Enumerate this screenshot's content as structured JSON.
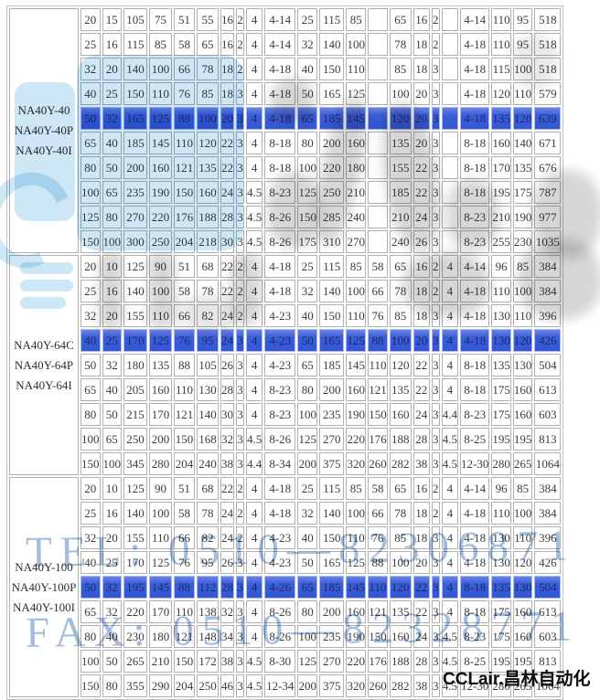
{
  "watermarks": {
    "tel": "TEL: 0510—82306871",
    "fax": "FAX: 0510—82328771",
    "brand": "CCLair.昌林自动化"
  },
  "colors": {
    "highlight_blue": "#3a5ed8",
    "watermark_light_blue": "#cde7f6",
    "watermark_gray": "#767676",
    "cell_border": "#b2b1b0",
    "text": "#3c3c3c",
    "highlight_text": "#1d2a6a"
  },
  "table": {
    "groups": [
      {
        "models": [
          "NA40Y-40",
          "NA40Y-40P",
          "NA40Y-40I"
        ],
        "highlight_row": 4,
        "rows": [
          [
            "20",
            "15",
            "105",
            "75",
            "51",
            "55",
            "16",
            "2",
            "4",
            "4-14",
            "25",
            "115",
            "85",
            "",
            "65",
            "16",
            "2",
            "",
            "4-14",
            "110",
            "95",
            "518"
          ],
          [
            "25",
            "16",
            "115",
            "85",
            "58",
            "65",
            "16",
            "2",
            "4",
            "4-14",
            "32",
            "140",
            "100",
            "",
            "78",
            "18",
            "2",
            "",
            "4-18",
            "110",
            "95",
            "518"
          ],
          [
            "32",
            "20",
            "140",
            "100",
            "66",
            "78",
            "18",
            "2",
            "4",
            "4-18",
            "40",
            "150",
            "110",
            "",
            "85",
            "18",
            "3",
            "",
            "4-18",
            "115",
            "100",
            "518"
          ],
          [
            "40",
            "25",
            "150",
            "110",
            "76",
            "85",
            "18",
            "3",
            "4",
            "4-18",
            "50",
            "165",
            "125",
            "",
            "100",
            "20",
            "3",
            "",
            "4-18",
            "120",
            "110",
            "579"
          ],
          [
            "50",
            "32",
            "165",
            "125",
            "88",
            "100",
            "20",
            "3",
            "4",
            "4-18",
            "65",
            "185",
            "145",
            "",
            "120",
            "20",
            "3",
            "",
            "4-18",
            "135",
            "120",
            "639"
          ],
          [
            "65",
            "40",
            "185",
            "145",
            "110",
            "120",
            "22",
            "3",
            "4",
            "8-18",
            "80",
            "200",
            "160",
            "",
            "135",
            "20",
            "3",
            "",
            "8-18",
            "160",
            "140",
            "671"
          ],
          [
            "80",
            "50",
            "200",
            "160",
            "121",
            "135",
            "22",
            "3",
            "4",
            "8-18",
            "100",
            "220",
            "180",
            "",
            "155",
            "22",
            "3",
            "",
            "8-18",
            "170",
            "135",
            "676"
          ],
          [
            "100",
            "65",
            "235",
            "190",
            "150",
            "160",
            "24",
            "3",
            "4.5",
            "8-23",
            "125",
            "250",
            "210",
            "",
            "185",
            "22",
            "3",
            "",
            "8-18",
            "195",
            "175",
            "787"
          ],
          [
            "125",
            "80",
            "270",
            "220",
            "176",
            "188",
            "28",
            "3",
            "4.5",
            "8-26",
            "150",
            "285",
            "240",
            "",
            "210",
            "24",
            "3",
            "",
            "8-23",
            "210",
            "190",
            "977"
          ],
          [
            "150",
            "100",
            "300",
            "250",
            "204",
            "218",
            "30",
            "3",
            "4.5",
            "8-26",
            "175",
            "310",
            "270",
            "",
            "240",
            "26",
            "3",
            "",
            "8-23",
            "255",
            "230",
            "1035"
          ]
        ]
      },
      {
        "models": [
          "NA40Y-64C",
          "NA40Y-64P",
          "NA40Y-64I"
        ],
        "highlight_row": 3,
        "rows": [
          [
            "20",
            "10",
            "125",
            "90",
            "51",
            "68",
            "22",
            "2",
            "4",
            "4-18",
            "25",
            "115",
            "85",
            "58",
            "65",
            "16",
            "2",
            "4",
            "4-14",
            "96",
            "85",
            "384"
          ],
          [
            "25",
            "16",
            "140",
            "100",
            "58",
            "78",
            "22",
            "2",
            "4",
            "4-18",
            "32",
            "140",
            "100",
            "66",
            "78",
            "18",
            "2",
            "4",
            "4-18",
            "110",
            "100",
            "384"
          ],
          [
            "32",
            "20",
            "155",
            "110",
            "66",
            "82",
            "24",
            "2",
            "4",
            "4-23",
            "40",
            "150",
            "110",
            "76",
            "85",
            "18",
            "3",
            "4",
            "4-18",
            "130",
            "110",
            "396"
          ],
          [
            "40",
            "25",
            "170",
            "125",
            "76",
            "95",
            "24",
            "3",
            "4",
            "4-23",
            "50",
            "165",
            "125",
            "88",
            "100",
            "20",
            "3",
            "4",
            "4-18",
            "130",
            "120",
            "426"
          ],
          [
            "50",
            "32",
            "180",
            "135",
            "88",
            "105",
            "26",
            "3",
            "4",
            "4-23",
            "65",
            "185",
            "145",
            "110",
            "120",
            "22",
            "3",
            "4",
            "8-18",
            "135",
            "130",
            "504"
          ],
          [
            "65",
            "40",
            "205",
            "160",
            "110",
            "130",
            "28",
            "3",
            "4",
            "8-23",
            "80",
            "200",
            "160",
            "121",
            "135",
            "22",
            "3",
            "4",
            "8-18",
            "175",
            "160",
            "613"
          ],
          [
            "80",
            "50",
            "215",
            "170",
            "121",
            "140",
            "30",
            "3",
            "4",
            "8-23",
            "100",
            "235",
            "190",
            "150",
            "160",
            "24",
            "3",
            "4.4",
            "8-23",
            "175",
            "160",
            "603"
          ],
          [
            "100",
            "65",
            "250",
            "200",
            "150",
            "168",
            "32",
            "3",
            "4.5",
            "8-26",
            "125",
            "270",
            "220",
            "176",
            "188",
            "28",
            "3",
            "4.5",
            "8-25",
            "195",
            "195",
            "813"
          ],
          [
            "150",
            "100",
            "345",
            "280",
            "204",
            "240",
            "38",
            "3",
            "4.4",
            "8-34",
            "200",
            "375",
            "320",
            "260",
            "282",
            "38",
            "3",
            "4.5",
            "12-30",
            "280",
            "265",
            "1064"
          ]
        ]
      },
      {
        "models": [
          "NA40Y-100",
          "NA40Y-100P",
          "NA40Y-100I"
        ],
        "highlight_row": 4,
        "rows": [
          [
            "20",
            "10",
            "125",
            "90",
            "51",
            "68",
            "22",
            "2",
            "4",
            "4-18",
            "25",
            "115",
            "85",
            "58",
            "65",
            "16",
            "2",
            "4",
            "4-14",
            "96",
            "85",
            "384"
          ],
          [
            "25",
            "16",
            "140",
            "100",
            "58",
            "78",
            "24",
            "2",
            "4",
            "4-18",
            "32",
            "140",
            "100",
            "66",
            "78",
            "18",
            "2",
            "4",
            "4-18",
            "110",
            "100",
            "384"
          ],
          [
            "32",
            "20",
            "155",
            "110",
            "66",
            "82",
            "24",
            "2",
            "4",
            "4-23",
            "40",
            "150",
            "110",
            "76",
            "85",
            "18",
            "3",
            "4",
            "4-18",
            "130",
            "110",
            "396"
          ],
          [
            "40",
            "25",
            "170",
            "125",
            "76",
            "95",
            "26",
            "3",
            "4",
            "4-23",
            "50",
            "165",
            "125",
            "88",
            "100",
            "20",
            "3",
            "4",
            "4-18",
            "130",
            "120",
            "426"
          ],
          [
            "50",
            "32",
            "195",
            "145",
            "88",
            "112",
            "28",
            "3",
            "4",
            "4-26",
            "65",
            "185",
            "145",
            "110",
            "120",
            "22",
            "3",
            "4",
            "8-18",
            "135",
            "130",
            "504"
          ],
          [
            "65",
            "32",
            "220",
            "170",
            "110",
            "138",
            "32",
            "3",
            "4",
            "8-26",
            "80",
            "200",
            "160",
            "121",
            "135",
            "22",
            "3",
            "4",
            "8-18",
            "175",
            "160",
            "613"
          ],
          [
            "80",
            "40",
            "230",
            "180",
            "121",
            "148",
            "34",
            "3",
            "4",
            "8-26",
            "100",
            "235",
            "190",
            "150",
            "160",
            "24",
            "3",
            "4.5",
            "8-23",
            "175",
            "160",
            "603"
          ],
          [
            "100",
            "50",
            "265",
            "210",
            "150",
            "172",
            "38",
            "3",
            "4.5",
            "8-30",
            "125",
            "270",
            "220",
            "176",
            "188",
            "28",
            "3",
            "4.5",
            "8-25",
            "195",
            "195",
            "813"
          ],
          [
            "150",
            "80",
            "355",
            "290",
            "204",
            "250",
            "46",
            "3",
            "4.5",
            "12-34",
            "200",
            "375",
            "320",
            "260",
            "282",
            "38",
            "3",
            "4.5",
            "12-30",
            "280",
            "265",
            "1064"
          ]
        ]
      }
    ]
  }
}
